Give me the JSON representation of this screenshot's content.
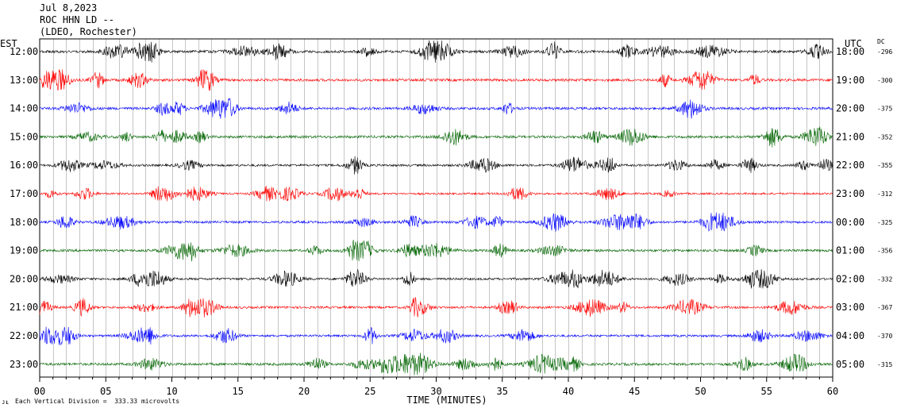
{
  "header": {
    "date": "Jul 8,2023",
    "station": "ROC HHN LD --",
    "network": "(LDEO, Rochester)"
  },
  "left_zone_label": "EST",
  "right_zone_label": "UTC",
  "dc_label": "DC",
  "footer": {
    "scale_note": "Each Vertical Division =  333.33 microvolts",
    "corner_mark": "ᴊᴌ"
  },
  "colors": {
    "black": "#000000",
    "red": "#ff0000",
    "blue": "#0000ff",
    "green": "#006400",
    "grid": "#000000"
  },
  "chart_data": {
    "type": "line",
    "xlabel": "TIME (MINUTES)",
    "xlim": [
      0,
      60
    ],
    "x_ticks": [
      "00",
      "05",
      "10",
      "15",
      "20",
      "25",
      "30",
      "35",
      "40",
      "45",
      "50",
      "55",
      "60"
    ],
    "rows": [
      {
        "est": "12:00",
        "utc": "18:00",
        "dc": "-296",
        "color": "black",
        "amp": 1.0
      },
      {
        "est": "13:00",
        "utc": "19:00",
        "dc": "-300",
        "color": "red",
        "amp": 1.0
      },
      {
        "est": "14:00",
        "utc": "20:00",
        "dc": "-375",
        "color": "blue",
        "amp": 1.0
      },
      {
        "est": "15:00",
        "utc": "21:00",
        "dc": "-352",
        "color": "green",
        "amp": 1.0
      },
      {
        "est": "16:00",
        "utc": "22:00",
        "dc": "-355",
        "color": "black",
        "amp": 0.85
      },
      {
        "est": "17:00",
        "utc": "23:00",
        "dc": "-312",
        "color": "red",
        "amp": 0.75
      },
      {
        "est": "18:00",
        "utc": "00:00",
        "dc": "-325",
        "color": "blue",
        "amp": 0.9
      },
      {
        "est": "19:00",
        "utc": "01:00",
        "dc": "-356",
        "color": "green",
        "amp": 0.95
      },
      {
        "est": "20:00",
        "utc": "02:00",
        "dc": "-332",
        "color": "black",
        "amp": 0.85
      },
      {
        "est": "21:00",
        "utc": "03:00",
        "dc": "-367",
        "color": "red",
        "amp": 0.9
      },
      {
        "est": "22:00",
        "utc": "04:00",
        "dc": "-370",
        "color": "blue",
        "amp": 0.85
      },
      {
        "est": "23:00",
        "utc": "05:00",
        "dc": "-315",
        "color": "green",
        "amp": 1.0
      }
    ]
  }
}
